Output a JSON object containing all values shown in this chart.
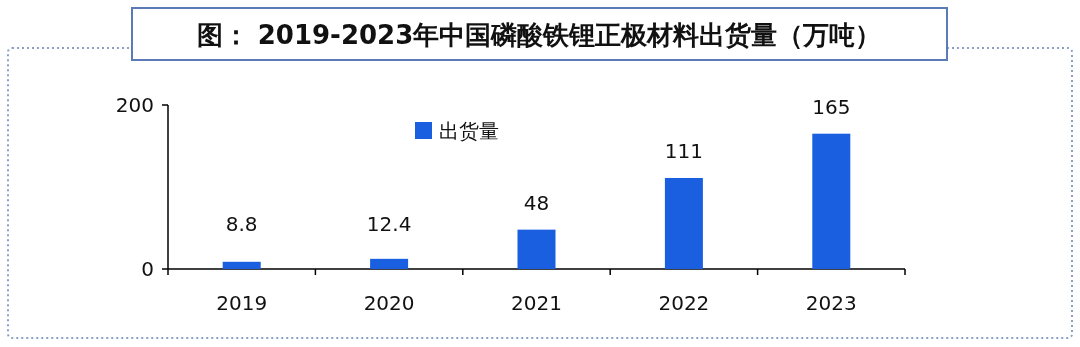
{
  "chart_data": {
    "type": "bar",
    "title": "图： 2019-2023年中国磷酸铁锂正极材料出货量（万吨）",
    "categories": [
      "2019",
      "2020",
      "2021",
      "2022",
      "2023"
    ],
    "series": [
      {
        "name": "出货量",
        "color": "#1a5fe0",
        "values": [
          8.8,
          12.4,
          48,
          111,
          165
        ]
      }
    ],
    "ylim": [
      0,
      200
    ],
    "yticks": [
      0,
      200
    ],
    "data_labels": true,
    "legend": "top"
  }
}
